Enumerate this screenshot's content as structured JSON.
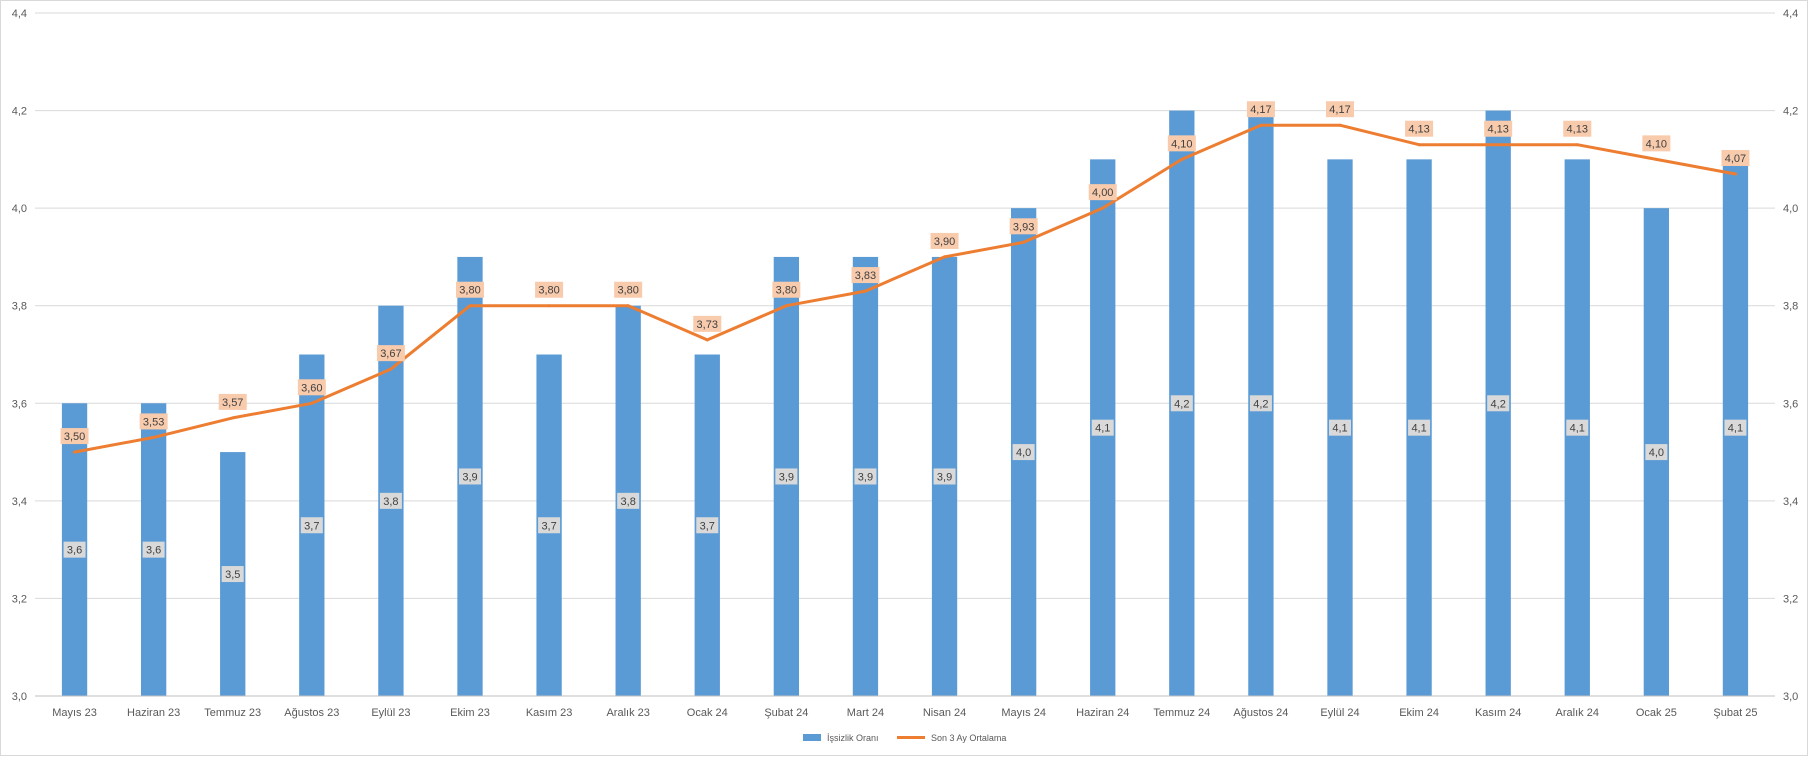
{
  "chart_data": {
    "type": "bar+line",
    "categories": [
      "Mayıs 23",
      "Haziran 23",
      "Temmuz 23",
      "Ağustos 23",
      "Eylül 23",
      "Ekim 23",
      "Kasım 23",
      "Aralık 23",
      "Ocak 24",
      "Şubat 24",
      "Mart 24",
      "Nisan 24",
      "Mayıs 24",
      "Haziran 24",
      "Temmuz 24",
      "Ağustos 24",
      "Eylül 24",
      "Ekim 24",
      "Kasım 24",
      "Aralık 24",
      "Ocak 25",
      "Şubat 25"
    ],
    "series": [
      {
        "name": "İşsizlik Oranı",
        "type": "bar",
        "color": "#5b9bd5",
        "values": [
          3.6,
          3.6,
          3.5,
          3.7,
          3.8,
          3.9,
          3.7,
          3.8,
          3.7,
          3.9,
          3.9,
          3.9,
          4.0,
          4.1,
          4.2,
          4.2,
          4.1,
          4.1,
          4.2,
          4.1,
          4.0,
          4.1
        ],
        "labels": [
          "3,6",
          "3,6",
          "3,5",
          "3,7",
          "3,8",
          "3,9",
          "3,7",
          "3,8",
          "3,7",
          "3,9",
          "3,9",
          "3,9",
          "4,0",
          "4,1",
          "4,2",
          "4,2",
          "4,1",
          "4,1",
          "4,2",
          "4,1",
          "4,0",
          "4,1"
        ]
      },
      {
        "name": "Son 3 Ay Ortalama",
        "type": "line",
        "color": "#ed7d31",
        "values": [
          3.5,
          3.53,
          3.57,
          3.6,
          3.67,
          3.8,
          3.8,
          3.8,
          3.73,
          3.8,
          3.83,
          3.9,
          3.93,
          4.0,
          4.1,
          4.17,
          4.17,
          4.13,
          4.13,
          4.13,
          4.1,
          4.07
        ],
        "labels": [
          "3,50",
          "3,53",
          "3,57",
          "3,60",
          "3,67",
          "3,80",
          "3,80",
          "3,80",
          "3,73",
          "3,80",
          "3,83",
          "3,90",
          "3,93",
          "4,00",
          "4,10",
          "4,17",
          "4,17",
          "4,13",
          "4,13",
          "4,13",
          "4,10",
          "4,07"
        ]
      }
    ],
    "ylim": [
      3.0,
      4.4
    ],
    "y_ticks": [
      3.0,
      3.2,
      3.4,
      3.6,
      3.8,
      4.0,
      4.2,
      4.4
    ],
    "y_tick_labels": [
      "3,0",
      "3,2",
      "3,4",
      "3,6",
      "3,8",
      "4,0",
      "4,2",
      "4,4"
    ],
    "grid": true,
    "secondary_axis_mirrored": true,
    "legend_position": "bottom",
    "title": "",
    "xlabel": "",
    "ylabel": ""
  },
  "legend": {
    "bar_label": "İşsizlik Oranı",
    "line_label": "Son 3 Ay Ortalama"
  },
  "colors": {
    "bar": "#5b9bd5",
    "line": "#ed7d31",
    "line_label_bg": "#f8cbad",
    "bar_label_bg": "#d9d9d9",
    "grid": "#d9d9d9",
    "axis_text": "#595959"
  }
}
